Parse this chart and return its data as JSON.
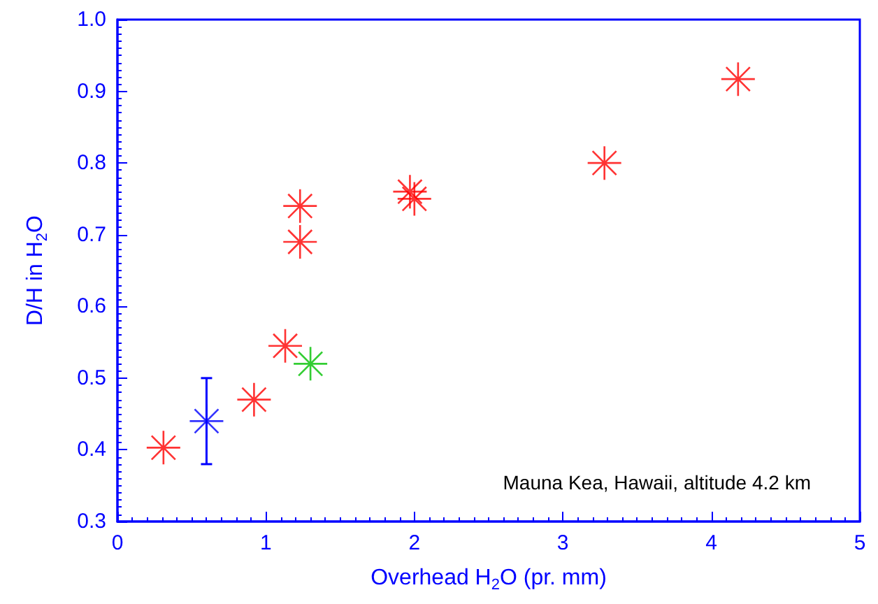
{
  "chart_data": {
    "type": "scatter",
    "xlabel": "Overhead H$_{2}$O (pr. mm)",
    "ylabel": "D/H in H$_{2}$O",
    "xlim": [
      0,
      5
    ],
    "xticks": [
      0,
      1,
      2,
      3,
      4,
      5
    ],
    "ylim": [
      0.3,
      1.0
    ],
    "yticks": [
      0.3,
      0.4,
      0.5,
      0.6,
      0.7,
      0.8,
      0.9,
      {
        "value": 1,
        "label": "1.0"
      }
    ],
    "grid": false,
    "marker": "star",
    "annotations": [
      "Mauna Kea, Hawaii, altitude 4.2 km"
    ],
    "series": [
      {
        "color": "#ff0000",
        "x": [
          0.31,
          0.92,
          1.13,
          1.23,
          1.23,
          1.97,
          2.0,
          3.28,
          4.18
        ],
        "values": [
          0.403,
          0.47,
          0.545,
          0.74,
          0.69,
          0.76,
          0.75,
          0.8,
          0.917
        ]
      },
      {
        "color": "#0000ff",
        "x": [
          0.6
        ],
        "values": [
          0.44
        ],
        "errors": [
          [
            0.38,
            0.5
          ]
        ]
      },
      {
        "color": "#00c000",
        "x": [
          1.3
        ],
        "values": [
          0.52
        ]
      }
    ]
  }
}
